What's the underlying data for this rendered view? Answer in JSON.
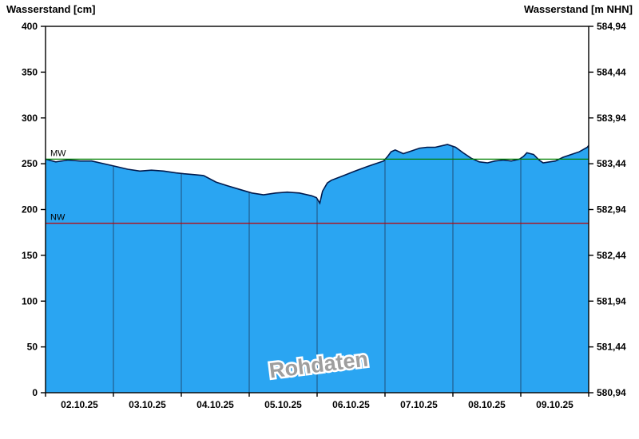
{
  "chart_data": {
    "type": "area",
    "title": "",
    "watermark": "Rohdaten",
    "left_axis": {
      "label": "Wasserstand [cm]",
      "min": 0,
      "max": 400,
      "tick_step": 50,
      "ticks": [
        0,
        50,
        100,
        150,
        200,
        250,
        300,
        350,
        400
      ]
    },
    "right_axis": {
      "label": "Wasserstand [m NHN]",
      "ticks": [
        "580,94",
        "581,44",
        "581,94",
        "582,44",
        "582,94",
        "583,44",
        "583,94",
        "584,44",
        "584,94"
      ]
    },
    "x_axis": {
      "labels": [
        "02.10.25",
        "03.10.25",
        "04.10.25",
        "05.10.25",
        "06.10.25",
        "07.10.25",
        "08.10.25",
        "09.10.25"
      ],
      "days": 8
    },
    "reference_lines": [
      {
        "name": "MW",
        "value": 255,
        "color": "#008000"
      },
      {
        "name": "NW",
        "value": 185,
        "color": "#c00000"
      }
    ],
    "colors": {
      "fill": "#2aa5f2",
      "line": "#001a4d",
      "grid": "#1c3a5e",
      "frame": "#000000",
      "watermark_fill": "#9e9e9e",
      "watermark_halo": "#ffffff"
    },
    "series": [
      {
        "name": "Wasserstand",
        "unit": "cm",
        "points": [
          [
            0.0,
            255
          ],
          [
            0.15,
            252
          ],
          [
            0.33,
            254
          ],
          [
            0.51,
            253
          ],
          [
            0.68,
            253
          ],
          [
            0.86,
            250
          ],
          [
            1.04,
            247
          ],
          [
            1.21,
            244
          ],
          [
            1.39,
            242
          ],
          [
            1.56,
            243
          ],
          [
            1.74,
            242
          ],
          [
            1.92,
            240
          ],
          [
            2.04,
            239
          ],
          [
            2.21,
            238
          ],
          [
            2.33,
            237
          ],
          [
            2.51,
            230
          ],
          [
            2.68,
            226
          ],
          [
            2.86,
            222
          ],
          [
            3.04,
            218
          ],
          [
            3.21,
            216
          ],
          [
            3.39,
            218
          ],
          [
            3.56,
            219
          ],
          [
            3.74,
            218
          ],
          [
            3.92,
            215
          ],
          [
            3.99,
            213
          ],
          [
            4.04,
            207
          ],
          [
            4.08,
            220
          ],
          [
            4.15,
            229
          ],
          [
            4.21,
            232
          ],
          [
            4.39,
            237
          ],
          [
            4.56,
            242
          ],
          [
            4.74,
            247
          ],
          [
            4.86,
            250
          ],
          [
            4.98,
            253
          ],
          [
            5.04,
            258
          ],
          [
            5.09,
            263
          ],
          [
            5.15,
            265
          ],
          [
            5.27,
            261
          ],
          [
            5.39,
            264
          ],
          [
            5.51,
            267
          ],
          [
            5.62,
            268
          ],
          [
            5.74,
            268
          ],
          [
            5.86,
            270
          ],
          [
            5.92,
            271
          ],
          [
            6.04,
            268
          ],
          [
            6.15,
            262
          ],
          [
            6.27,
            256
          ],
          [
            6.39,
            252
          ],
          [
            6.51,
            251
          ],
          [
            6.62,
            253
          ],
          [
            6.74,
            254
          ],
          [
            6.86,
            253
          ],
          [
            6.98,
            255
          ],
          [
            7.04,
            258
          ],
          [
            7.09,
            262
          ],
          [
            7.19,
            260
          ],
          [
            7.27,
            254
          ],
          [
            7.33,
            251
          ],
          [
            7.51,
            253
          ],
          [
            7.62,
            257
          ],
          [
            7.74,
            260
          ],
          [
            7.86,
            263
          ],
          [
            7.98,
            268
          ],
          [
            8.0,
            270
          ]
        ]
      }
    ]
  }
}
